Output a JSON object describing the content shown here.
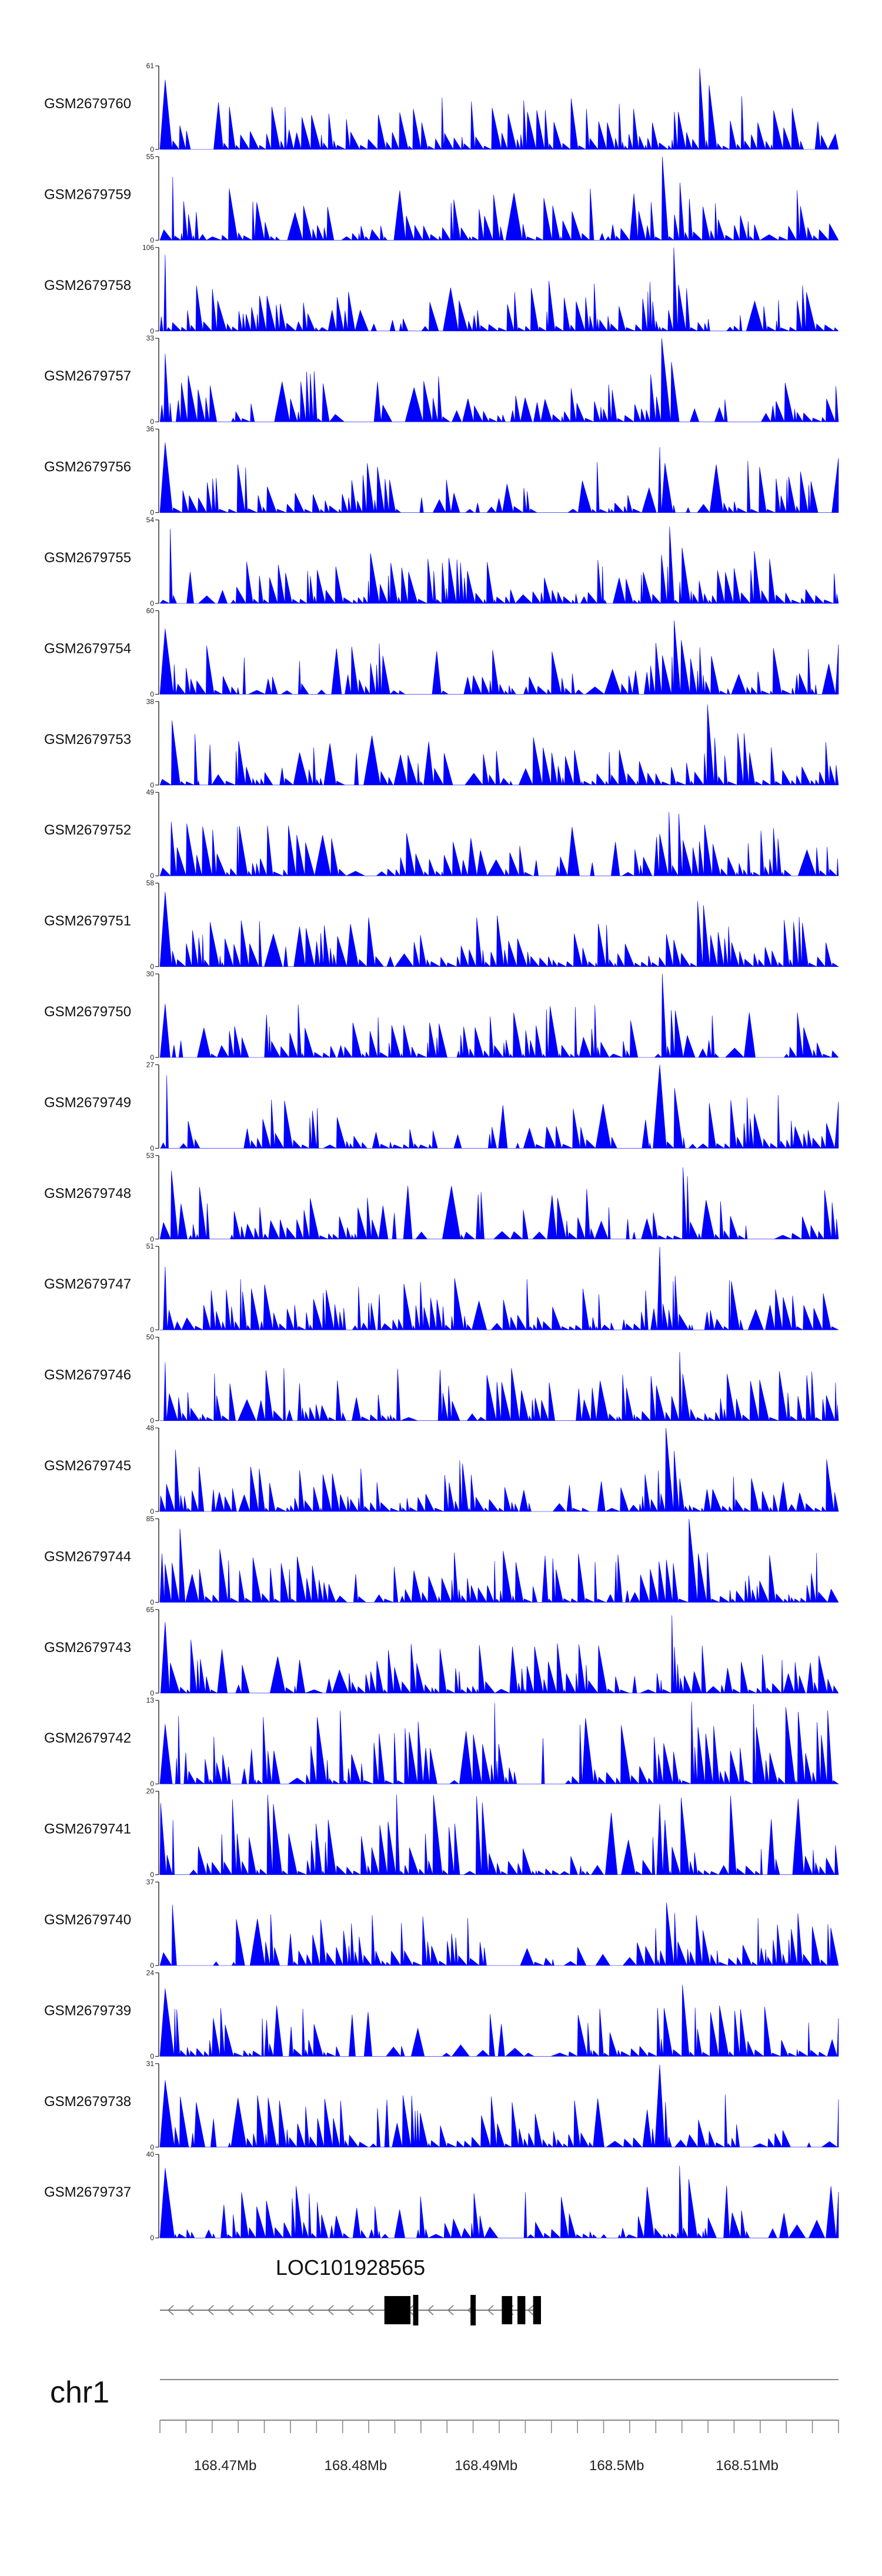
{
  "chart_data": {
    "type": "area",
    "series_color": "#0000FF",
    "x_range_bp": [
      168465000,
      168517000
    ],
    "tracks": [
      {
        "name": "GSM2679760",
        "ymax": 61,
        "ymin": 0
      },
      {
        "name": "GSM2679759",
        "ymax": 55,
        "ymin": 0
      },
      {
        "name": "GSM2679758",
        "ymax": 106,
        "ymin": 0
      },
      {
        "name": "GSM2679757",
        "ymax": 33,
        "ymin": 0
      },
      {
        "name": "GSM2679756",
        "ymax": 36,
        "ymin": 0
      },
      {
        "name": "GSM2679755",
        "ymax": 54,
        "ymin": 0
      },
      {
        "name": "GSM2679754",
        "ymax": 60,
        "ymin": 0
      },
      {
        "name": "GSM2679753",
        "ymax": 38,
        "ymin": 0
      },
      {
        "name": "GSM2679752",
        "ymax": 49,
        "ymin": 0
      },
      {
        "name": "GSM2679751",
        "ymax": 58,
        "ymin": 0
      },
      {
        "name": "GSM2679750",
        "ymax": 30,
        "ymin": 0
      },
      {
        "name": "GSM2679749",
        "ymax": 27,
        "ymin": 0
      },
      {
        "name": "GSM2679748",
        "ymax": 53,
        "ymin": 0
      },
      {
        "name": "GSM2679747",
        "ymax": 51,
        "ymin": 0
      },
      {
        "name": "GSM2679746",
        "ymax": 50,
        "ymin": 0
      },
      {
        "name": "GSM2679745",
        "ymax": 48,
        "ymin": 0
      },
      {
        "name": "GSM2679744",
        "ymax": 85,
        "ymin": 0
      },
      {
        "name": "GSM2679743",
        "ymax": 65,
        "ymin": 0
      },
      {
        "name": "GSM2679742",
        "ymax": 13,
        "ymin": 0
      },
      {
        "name": "GSM2679741",
        "ymax": 20,
        "ymin": 0
      },
      {
        "name": "GSM2679740",
        "ymax": 37,
        "ymin": 0
      },
      {
        "name": "GSM2679739",
        "ymax": 24,
        "ymin": 0
      },
      {
        "name": "GSM2679738",
        "ymax": 31,
        "ymin": 0
      },
      {
        "name": "GSM2679737",
        "ymax": 40,
        "ymin": 0
      }
    ],
    "gene": {
      "name": "LOC101928565",
      "strand": "-",
      "span_bp": [
        168465000,
        168494200
      ],
      "exons_bp": [
        [
          168482200,
          168484200
        ],
        [
          168484400,
          168484800
        ],
        [
          168488800,
          168489200
        ],
        [
          168491200,
          168492000
        ],
        [
          168492400,
          168493000
        ],
        [
          168493600,
          168494200
        ]
      ]
    },
    "chromosome": "chr1",
    "axis_ticks_bp": [
      168470000,
      168480000,
      168490000,
      168500000,
      168510000
    ],
    "axis_tick_labels": [
      "168.47Mb",
      "168.48Mb",
      "168.49Mb",
      "168.5Mb",
      "168.51Mb"
    ],
    "common_peaks_bp": [
      {
        "pos": 168465400,
        "rel": 0.85
      },
      {
        "pos": 168475700,
        "rel": 0.45
      },
      {
        "pos": 168503300,
        "rel": 1.0
      },
      {
        "pos": 168503700,
        "rel": 0.7
      },
      {
        "pos": 168517000,
        "rel": 0.6
      }
    ]
  }
}
